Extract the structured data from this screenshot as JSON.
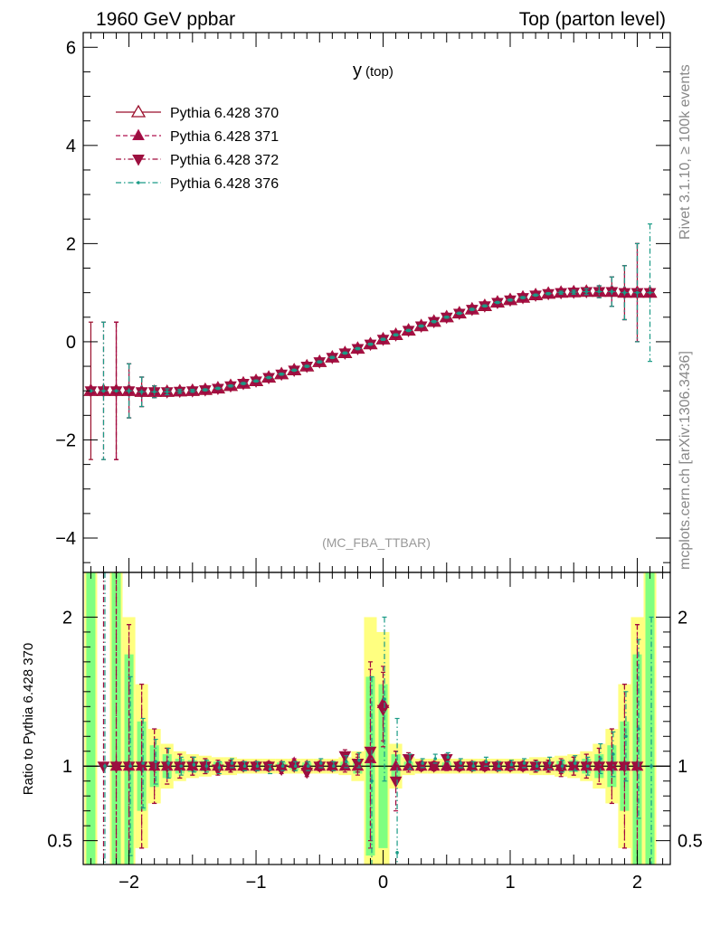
{
  "header": {
    "left_title": "1960 GeV ppbar",
    "right_title": "Top (parton level)"
  },
  "side_labels": {
    "rivet": "Rivet 3.1.10, ≥ 100k events",
    "mcplots": "mcplots.cern.ch [arXiv:1306.3436]"
  },
  "colors": {
    "s370": "#9a0f2b",
    "s371": "#b0104f",
    "s372": "#a00a3c",
    "s376": "#1a9b86",
    "band_yellow": "#ffff80",
    "band_green": "#80ff80",
    "marker_fill": "#9a1040",
    "marker_blue": "#3a7faa"
  },
  "chart_data": [
    {
      "type": "line",
      "panel": "main",
      "title": "y",
      "title_suffix": "(top)",
      "watermark": "(MC_FBA_TTBAR)",
      "xlim": [
        -2.36,
        2.26
      ],
      "ylim": [
        -4.7,
        6.3
      ],
      "yticks": [
        -4,
        -2,
        0,
        2,
        4,
        6
      ],
      "ytick_labels": [
        "−4",
        "−2",
        "0",
        "2",
        "4",
        "6"
      ],
      "legend_position": "top-left",
      "x": [
        -2.3,
        -2.2,
        -2.1,
        -2.0,
        -1.9,
        -1.8,
        -1.7,
        -1.6,
        -1.5,
        -1.4,
        -1.3,
        -1.2,
        -1.1,
        -1.0,
        -0.9,
        -0.8,
        -0.7,
        -0.6,
        -0.5,
        -0.4,
        -0.3,
        -0.2,
        -0.1,
        0.0,
        0.1,
        0.2,
        0.3,
        0.4,
        0.5,
        0.6,
        0.7,
        0.8,
        0.9,
        1.0,
        1.1,
        1.2,
        1.3,
        1.4,
        1.5,
        1.6,
        1.7,
        1.8,
        1.9,
        2.0,
        2.1
      ],
      "series": [
        {
          "name": "Pythia 6.428 370",
          "values": [
            -1.0,
            -1.0,
            -1.0,
            -1.0,
            -1.02,
            -1.02,
            -1.02,
            -1.01,
            -1.0,
            -0.98,
            -0.95,
            -0.9,
            -0.85,
            -0.8,
            -0.73,
            -0.66,
            -0.58,
            -0.5,
            -0.41,
            -0.32,
            -0.23,
            -0.14,
            -0.05,
            0.05,
            0.14,
            0.23,
            0.32,
            0.41,
            0.5,
            0.58,
            0.66,
            0.73,
            0.8,
            0.85,
            0.9,
            0.95,
            0.98,
            1.0,
            1.01,
            1.02,
            1.02,
            1.02,
            1.0,
            1.0,
            1.0
          ],
          "err": [
            1.4,
            0.0,
            1.4,
            0.55,
            0.3,
            0.12,
            0.06,
            0.04,
            0.03,
            0.02,
            0.02,
            0.02,
            0.02,
            0.02,
            0.02,
            0.02,
            0.02,
            0.02,
            0.02,
            0.02,
            0.02,
            0.02,
            0.02,
            0.02,
            0.02,
            0.02,
            0.02,
            0.02,
            0.02,
            0.02,
            0.02,
            0.02,
            0.02,
            0.02,
            0.02,
            0.02,
            0.02,
            0.03,
            0.04,
            0.06,
            0.12,
            0.3,
            0.55,
            1.0,
            0.0
          ]
        },
        {
          "name": "Pythia 6.428 371",
          "values": [
            -1.0,
            -1.0,
            -1.0,
            -1.0,
            -1.02,
            -1.02,
            -1.02,
            -1.01,
            -1.0,
            -0.98,
            -0.95,
            -0.9,
            -0.85,
            -0.8,
            -0.73,
            -0.66,
            -0.58,
            -0.5,
            -0.41,
            -0.32,
            -0.23,
            -0.14,
            -0.05,
            0.05,
            0.14,
            0.23,
            0.32,
            0.41,
            0.5,
            0.58,
            0.66,
            0.73,
            0.8,
            0.85,
            0.9,
            0.95,
            0.98,
            1.0,
            1.01,
            1.02,
            1.02,
            1.02,
            1.0,
            1.0,
            1.0
          ],
          "err": [
            0.0,
            0.0,
            1.4,
            0.55,
            0.3,
            0.12,
            0.06,
            0.04,
            0.03,
            0.02,
            0.02,
            0.02,
            0.02,
            0.02,
            0.02,
            0.02,
            0.02,
            0.02,
            0.02,
            0.02,
            0.02,
            0.02,
            0.02,
            0.02,
            0.02,
            0.02,
            0.02,
            0.02,
            0.02,
            0.02,
            0.02,
            0.02,
            0.02,
            0.02,
            0.02,
            0.02,
            0.02,
            0.03,
            0.04,
            0.06,
            0.12,
            0.3,
            0.55,
            1.0,
            0.0
          ]
        },
        {
          "name": "Pythia 6.428 372",
          "values": [
            -1.0,
            -1.0,
            -1.0,
            -1.0,
            -1.02,
            -1.02,
            -1.02,
            -1.01,
            -1.0,
            -0.98,
            -0.95,
            -0.9,
            -0.85,
            -0.8,
            -0.73,
            -0.66,
            -0.58,
            -0.5,
            -0.41,
            -0.32,
            -0.23,
            -0.14,
            -0.05,
            0.05,
            0.14,
            0.23,
            0.32,
            0.41,
            0.5,
            0.58,
            0.66,
            0.73,
            0.8,
            0.85,
            0.9,
            0.95,
            0.98,
            1.0,
            1.01,
            1.02,
            1.02,
            1.02,
            1.0,
            1.0,
            1.0
          ],
          "err": [
            0.0,
            1.4,
            1.4,
            0.55,
            0.3,
            0.12,
            0.06,
            0.04,
            0.03,
            0.02,
            0.02,
            0.02,
            0.02,
            0.02,
            0.02,
            0.02,
            0.02,
            0.02,
            0.02,
            0.02,
            0.02,
            0.02,
            0.02,
            0.02,
            0.02,
            0.02,
            0.02,
            0.02,
            0.02,
            0.02,
            0.02,
            0.02,
            0.02,
            0.02,
            0.02,
            0.02,
            0.02,
            0.03,
            0.04,
            0.06,
            0.12,
            0.3,
            0.55,
            1.0,
            0.0
          ]
        },
        {
          "name": "Pythia 6.428 376",
          "values": [
            -1.0,
            -1.0,
            -1.0,
            -1.0,
            -1.02,
            -1.02,
            -1.02,
            -1.01,
            -1.0,
            -0.98,
            -0.95,
            -0.9,
            -0.85,
            -0.8,
            -0.73,
            -0.66,
            -0.58,
            -0.5,
            -0.41,
            -0.32,
            -0.23,
            -0.14,
            -0.05,
            0.05,
            0.14,
            0.23,
            0.32,
            0.41,
            0.5,
            0.58,
            0.66,
            0.73,
            0.8,
            0.85,
            0.9,
            0.95,
            0.98,
            1.0,
            1.01,
            1.02,
            1.02,
            1.02,
            1.0,
            1.0,
            1.0
          ],
          "err": [
            0.0,
            1.4,
            0.0,
            0.55,
            0.3,
            0.12,
            0.06,
            0.04,
            0.03,
            0.02,
            0.02,
            0.02,
            0.02,
            0.02,
            0.02,
            0.02,
            0.02,
            0.02,
            0.02,
            0.02,
            0.02,
            0.02,
            0.02,
            0.02,
            0.02,
            0.02,
            0.02,
            0.02,
            0.02,
            0.02,
            0.02,
            0.02,
            0.02,
            0.02,
            0.02,
            0.02,
            0.02,
            0.03,
            0.04,
            0.06,
            0.12,
            0.3,
            0.55,
            1.0,
            1.4
          ]
        }
      ]
    },
    {
      "type": "line",
      "panel": "ratio",
      "ylabel": "Ratio to Pythia 6.428 370",
      "xlim": [
        -2.36,
        2.26
      ],
      "ylim": [
        0.34,
        2.3
      ],
      "yticks": [
        0.5,
        1,
        2
      ],
      "ytick_labels": [
        "0.5",
        "1",
        "2"
      ],
      "xticks": [
        -2,
        -1,
        0,
        1,
        2
      ],
      "xtick_labels": [
        "−2",
        "−1",
        "0",
        "1",
        "2"
      ],
      "reference_line": 1,
      "band_x": [
        -2.3,
        -2.2,
        -2.1,
        -2.0,
        -1.9,
        -1.8,
        -1.7,
        -1.6,
        -1.5,
        -1.4,
        -1.3,
        -1.2,
        -1.1,
        -1.0,
        -0.9,
        -0.8,
        -0.7,
        -0.6,
        -0.5,
        -0.4,
        -0.3,
        -0.2,
        -0.1,
        0.0,
        0.1,
        0.2,
        0.3,
        0.4,
        0.5,
        0.6,
        0.7,
        0.8,
        0.9,
        1.0,
        1.1,
        1.2,
        1.3,
        1.4,
        1.5,
        1.6,
        1.7,
        1.8,
        1.9,
        2.0,
        2.1
      ],
      "band_yellow_rel": [
        2.0,
        0.0,
        2.0,
        1.0,
        0.55,
        0.25,
        0.15,
        0.1,
        0.08,
        0.07,
        0.06,
        0.06,
        0.05,
        0.05,
        0.05,
        0.05,
        0.05,
        0.05,
        0.05,
        0.05,
        0.06,
        0.1,
        1.0,
        0.9,
        0.15,
        0.06,
        0.05,
        0.05,
        0.05,
        0.05,
        0.05,
        0.05,
        0.05,
        0.05,
        0.05,
        0.06,
        0.06,
        0.07,
        0.08,
        0.1,
        0.15,
        0.25,
        0.55,
        1.0,
        2.0
      ],
      "band_green_rel": [
        2.0,
        0.0,
        2.0,
        0.75,
        0.3,
        0.14,
        0.08,
        0.05,
        0.04,
        0.035,
        0.03,
        0.03,
        0.025,
        0.025,
        0.025,
        0.025,
        0.025,
        0.025,
        0.025,
        0.025,
        0.03,
        0.05,
        0.6,
        0.55,
        0.08,
        0.03,
        0.025,
        0.025,
        0.025,
        0.025,
        0.025,
        0.025,
        0.025,
        0.025,
        0.025,
        0.03,
        0.03,
        0.035,
        0.04,
        0.05,
        0.08,
        0.14,
        0.3,
        0.75,
        2.0
      ],
      "series": [
        {
          "name": "Pythia 6.428 371",
          "values": [
            null,
            null,
            1.0,
            1.0,
            1.0,
            1.0,
            1.0,
            1.0,
            1.0,
            1.0,
            1.0,
            1.0,
            1.0,
            1.0,
            1.0,
            1.0,
            1.02,
            1.0,
            1.0,
            1.0,
            1.0,
            1.0,
            1.05,
            1.42,
            1.0,
            1.0,
            1.0,
            1.0,
            1.0,
            1.0,
            1.0,
            1.0,
            1.0,
            1.0,
            1.0,
            1.0,
            1.0,
            1.0,
            1.0,
            1.0,
            1.0,
            1.0,
            1.0,
            1.0,
            null
          ],
          "err": [
            0,
            0,
            1.3,
            0.95,
            0.55,
            0.25,
            0.12,
            0.08,
            0.06,
            0.05,
            0.04,
            0.04,
            0.03,
            0.03,
            0.03,
            0.03,
            0.03,
            0.03,
            0.03,
            0.03,
            0.04,
            0.06,
            0.6,
            0.25,
            0.1,
            0.04,
            0.03,
            0.03,
            0.03,
            0.03,
            0.03,
            0.03,
            0.03,
            0.03,
            0.03,
            0.04,
            0.04,
            0.05,
            0.06,
            0.08,
            0.12,
            0.25,
            0.55,
            0.95,
            0
          ]
        },
        {
          "name": "Pythia 6.428 372",
          "values": [
            null,
            1.0,
            1.0,
            1.0,
            1.0,
            1.0,
            1.0,
            1.0,
            1.0,
            1.0,
            0.98,
            1.0,
            1.0,
            1.0,
            1.0,
            0.98,
            1.0,
            0.96,
            1.0,
            1.0,
            1.07,
            1.02,
            1.1,
            1.38,
            0.9,
            1.05,
            1.0,
            1.0,
            1.05,
            1.0,
            1.0,
            1.0,
            1.0,
            1.0,
            1.0,
            1.0,
            1.0,
            0.98,
            1.0,
            1.0,
            1.0,
            1.0,
            1.0,
            1.0,
            null
          ],
          "err": [
            0,
            1.3,
            1.3,
            0.95,
            0.55,
            0.25,
            0.12,
            0.08,
            0.06,
            0.05,
            0.04,
            0.04,
            0.03,
            0.03,
            0.03,
            0.03,
            0.03,
            0.03,
            0.03,
            0.03,
            0.04,
            0.06,
            0.6,
            0.25,
            0.2,
            0.04,
            0.03,
            0.03,
            0.03,
            0.03,
            0.03,
            0.03,
            0.03,
            0.03,
            0.03,
            0.04,
            0.04,
            0.05,
            0.06,
            0.08,
            0.12,
            0.25,
            0.55,
            0.95,
            0
          ]
        },
        {
          "name": "Pythia 6.428 376",
          "values": [
            null,
            1.0,
            null,
            1.0,
            1.02,
            1.03,
            1.02,
            1.0,
            1.01,
            1.0,
            0.99,
            1.02,
            1.0,
            1.0,
            0.98,
            1.0,
            1.0,
            1.0,
            1.02,
            1.0,
            1.03,
            1.04,
            0.9,
            1.45,
            0.42,
            1.03,
            1.02,
            1.05,
            1.06,
            1.02,
            1.0,
            1.03,
            1.0,
            1.01,
            1.02,
            1.0,
            1.02,
            1.0,
            1.02,
            1.0,
            1.05,
            1.08,
            1.2,
            1.25,
            1.0
          ],
          "err": [
            0,
            1.3,
            0,
            0.6,
            0.3,
            0.15,
            0.1,
            0.06,
            0.05,
            0.04,
            0.04,
            0.03,
            0.03,
            0.03,
            0.03,
            0.03,
            0.03,
            0.03,
            0.03,
            0.03,
            0.04,
            0.05,
            0.7,
            0.55,
            0.9,
            0.05,
            0.03,
            0.03,
            0.03,
            0.03,
            0.03,
            0.03,
            0.03,
            0.03,
            0.03,
            0.03,
            0.04,
            0.04,
            0.05,
            0.06,
            0.1,
            0.15,
            0.3,
            0.6,
            1.0
          ]
        }
      ]
    }
  ]
}
